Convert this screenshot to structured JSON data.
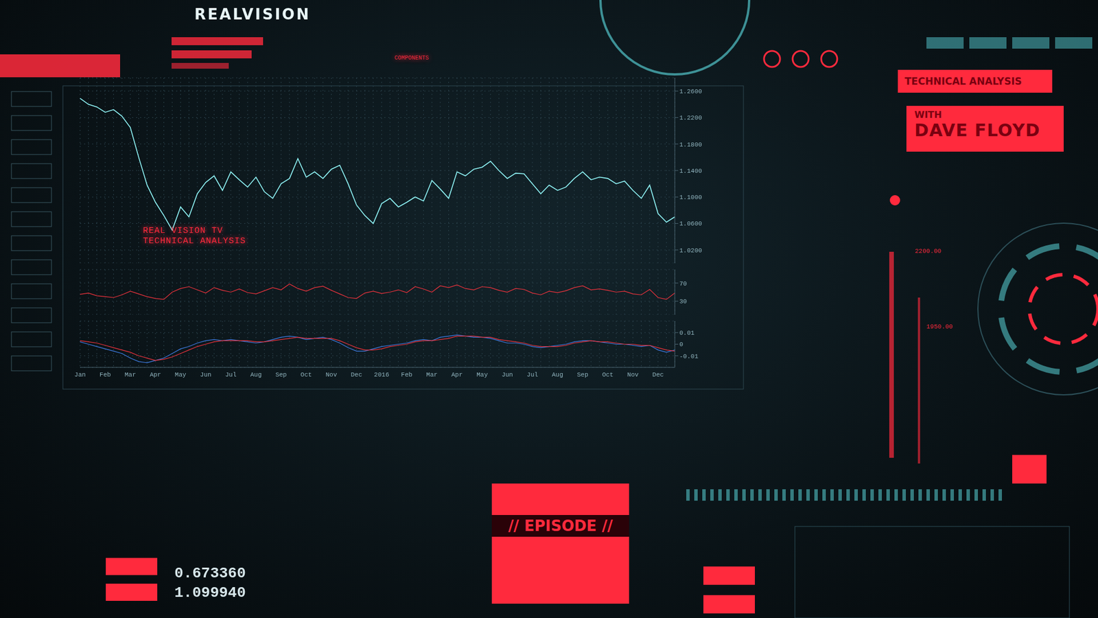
{
  "chart_data": [
    {
      "type": "line",
      "color": "#8ff3f5",
      "grid": true,
      "tick_labels": "y",
      "ylim": [
        1.0,
        1.28
      ],
      "yticks": [
        {
          "value": 1.02,
          "label": "1.0200"
        },
        {
          "value": 1.06,
          "label": "1.0600"
        },
        {
          "value": 1.1,
          "label": "1.1000"
        },
        {
          "value": 1.14,
          "label": "1.1400"
        },
        {
          "value": 1.18,
          "label": "1.1800"
        },
        {
          "value": 1.22,
          "label": "1.2200"
        },
        {
          "value": 1.26,
          "label": "1.2600"
        }
      ],
      "values": [
        1.249,
        1.24,
        1.236,
        1.228,
        1.232,
        1.222,
        1.205,
        1.16,
        1.118,
        1.092,
        1.072,
        1.05,
        1.085,
        1.07,
        1.105,
        1.122,
        1.132,
        1.11,
        1.138,
        1.126,
        1.115,
        1.13,
        1.108,
        1.098,
        1.12,
        1.128,
        1.158,
        1.13,
        1.138,
        1.128,
        1.142,
        1.148,
        1.12,
        1.088,
        1.072,
        1.06,
        1.09,
        1.098,
        1.085,
        1.092,
        1.1,
        1.094,
        1.125,
        1.112,
        1.098,
        1.138,
        1.132,
        1.142,
        1.145,
        1.154,
        1.14,
        1.128,
        1.136,
        1.135,
        1.12,
        1.105,
        1.118,
        1.11,
        1.115,
        1.128,
        1.138,
        1.126,
        1.13,
        1.128,
        1.12,
        1.124,
        1.11,
        1.098,
        1.118,
        1.075,
        1.062,
        1.07
      ]
    },
    {
      "type": "line",
      "color": "#e8323c",
      "grid": true,
      "tick_labels": "y",
      "ylim": [
        0,
        100
      ],
      "yticks": [
        30,
        70
      ],
      "values": [
        45,
        48,
        42,
        40,
        38,
        44,
        52,
        46,
        40,
        36,
        34,
        50,
        58,
        62,
        55,
        48,
        60,
        54,
        50,
        57,
        49,
        46,
        53,
        60,
        55,
        68,
        58,
        52,
        60,
        63,
        54,
        46,
        38,
        36,
        48,
        52,
        47,
        50,
        55,
        49,
        62,
        57,
        50,
        64,
        60,
        66,
        58,
        55,
        62,
        60,
        54,
        50,
        58,
        56,
        48,
        44,
        52,
        49,
        53,
        60,
        64,
        55,
        57,
        54,
        50,
        52,
        46,
        44,
        56,
        38,
        34,
        48
      ]
    },
    {
      "type": "line",
      "grid": true,
      "ylim": [
        -0.02,
        0.02
      ],
      "yticks": [
        -0.01,
        0,
        0.01
      ],
      "categories": [
        "Jan",
        null,
        null,
        "Feb",
        null,
        null,
        "Mar",
        null,
        null,
        "Apr",
        null,
        null,
        "May",
        null,
        null,
        "Jun",
        null,
        null,
        "Jul",
        null,
        null,
        "Aug",
        null,
        null,
        "Sep",
        null,
        null,
        "Oct",
        null,
        null,
        "Nov",
        null,
        null,
        "Dec",
        null,
        null,
        "2016",
        null,
        null,
        "Feb",
        null,
        null,
        "Mar",
        null,
        null,
        "Apr",
        null,
        null,
        "May",
        null,
        null,
        "Jun",
        null,
        null,
        "Jul",
        null,
        null,
        "Aug",
        null,
        null,
        "Sep",
        null,
        null,
        "Oct",
        null,
        null,
        "Nov",
        null,
        null,
        "Dec",
        null,
        null
      ],
      "series": [
        {
          "color": "#3d7be0",
          "values": [
            0.002,
            0.0,
            -0.002,
            -0.004,
            -0.006,
            -0.008,
            -0.012,
            -0.015,
            -0.016,
            -0.014,
            -0.012,
            -0.008,
            -0.004,
            -0.002,
            0.001,
            0.003,
            0.004,
            0.003,
            0.004,
            0.003,
            0.002,
            0.001,
            0.002,
            0.004,
            0.006,
            0.007,
            0.006,
            0.004,
            0.005,
            0.006,
            0.004,
            0.001,
            -0.003,
            -0.006,
            -0.006,
            -0.004,
            -0.002,
            -0.001,
            0.0,
            0.001,
            0.003,
            0.004,
            0.003,
            0.006,
            0.007,
            0.008,
            0.007,
            0.006,
            0.006,
            0.005,
            0.003,
            0.001,
            0.001,
            0.0,
            -0.002,
            -0.003,
            -0.002,
            -0.001,
            0.0,
            0.002,
            0.003,
            0.003,
            0.002,
            0.001,
            0.0,
            0.0,
            -0.001,
            -0.002,
            -0.001,
            -0.005,
            -0.007,
            -0.005
          ]
        },
        {
          "color": "#e8323c",
          "values": [
            0.003,
            0.002,
            0.001,
            -0.001,
            -0.003,
            -0.005,
            -0.007,
            -0.01,
            -0.012,
            -0.014,
            -0.013,
            -0.011,
            -0.008,
            -0.005,
            -0.002,
            0.0,
            0.002,
            0.003,
            0.003,
            0.003,
            0.003,
            0.002,
            0.002,
            0.003,
            0.004,
            0.005,
            0.006,
            0.005,
            0.005,
            0.005,
            0.005,
            0.003,
            0.0,
            -0.003,
            -0.005,
            -0.005,
            -0.004,
            -0.002,
            -0.001,
            0.0,
            0.002,
            0.003,
            0.003,
            0.004,
            0.005,
            0.007,
            0.007,
            0.007,
            0.006,
            0.006,
            0.004,
            0.003,
            0.002,
            0.001,
            -0.001,
            -0.002,
            -0.002,
            -0.002,
            -0.001,
            0.001,
            0.002,
            0.003,
            0.002,
            0.002,
            0.001,
            0.0,
            0.0,
            -0.001,
            -0.001,
            -0.003,
            -0.005,
            -0.006
          ]
        }
      ]
    }
  ],
  "hud": {
    "logo": "REALVISION",
    "components": "COMPONENTS",
    "panel": {
      "title": "TECHNICAL ANALYSIS",
      "with": "WITH",
      "host": "DAVE FLOYD"
    },
    "chart_caption": [
      "REAL VISION TV",
      "TECHNICAL ANALYSIS"
    ],
    "episode": "// EPISODE //",
    "readouts": [
      "0.673360",
      "1.099940"
    ],
    "gauge": [
      "2200.00",
      "1950.00"
    ]
  }
}
